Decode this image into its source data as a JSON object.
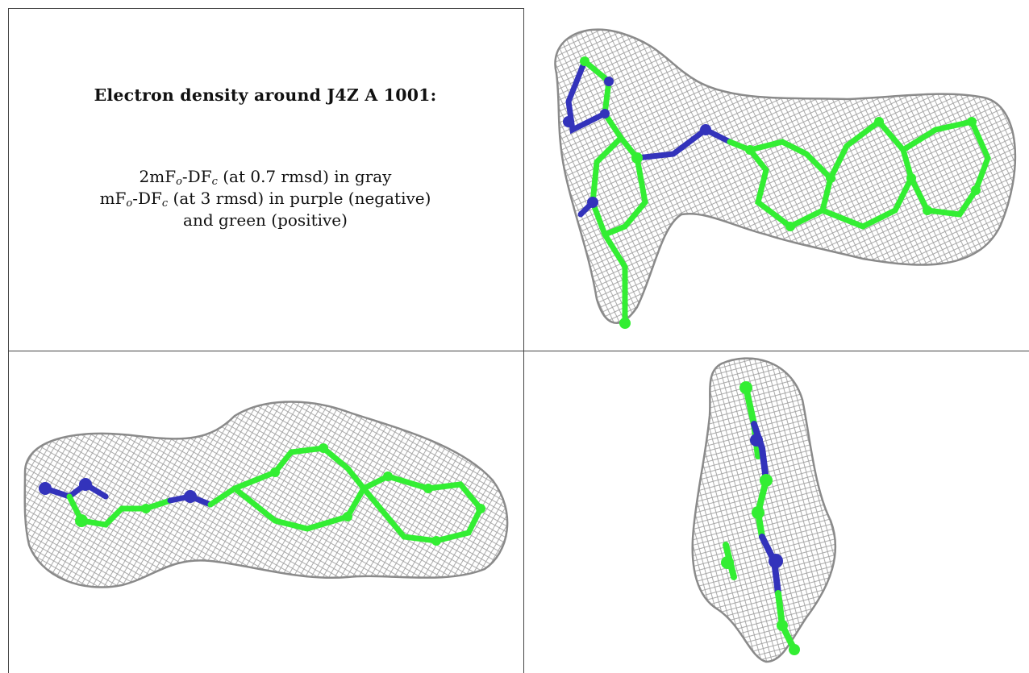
{
  "caption": {
    "title": "Electron density around J4Z A 1001:",
    "line1_pre": "2mF",
    "line1_sub1": "o",
    "line1_mid": "-DF",
    "line1_sub2": "c",
    "line1_post": " (at 0.7 rmsd) in gray",
    "line2_pre": "mF",
    "line2_sub1": "o",
    "line2_mid": "-DF",
    "line2_sub2": "c",
    "line2_post": " (at 3 rmsd) in purple (negative)",
    "line3": "and green (positive)"
  },
  "colors": {
    "mesh": "#9a9a9a",
    "carbon": "#33ee33",
    "nitrogen": "#3333bb",
    "border": "#444444"
  },
  "panels": [
    {
      "name": "density-view-top",
      "view": "face-on"
    },
    {
      "name": "density-view-side",
      "view": "edge-on"
    },
    {
      "name": "density-view-end",
      "view": "end-on"
    }
  ]
}
